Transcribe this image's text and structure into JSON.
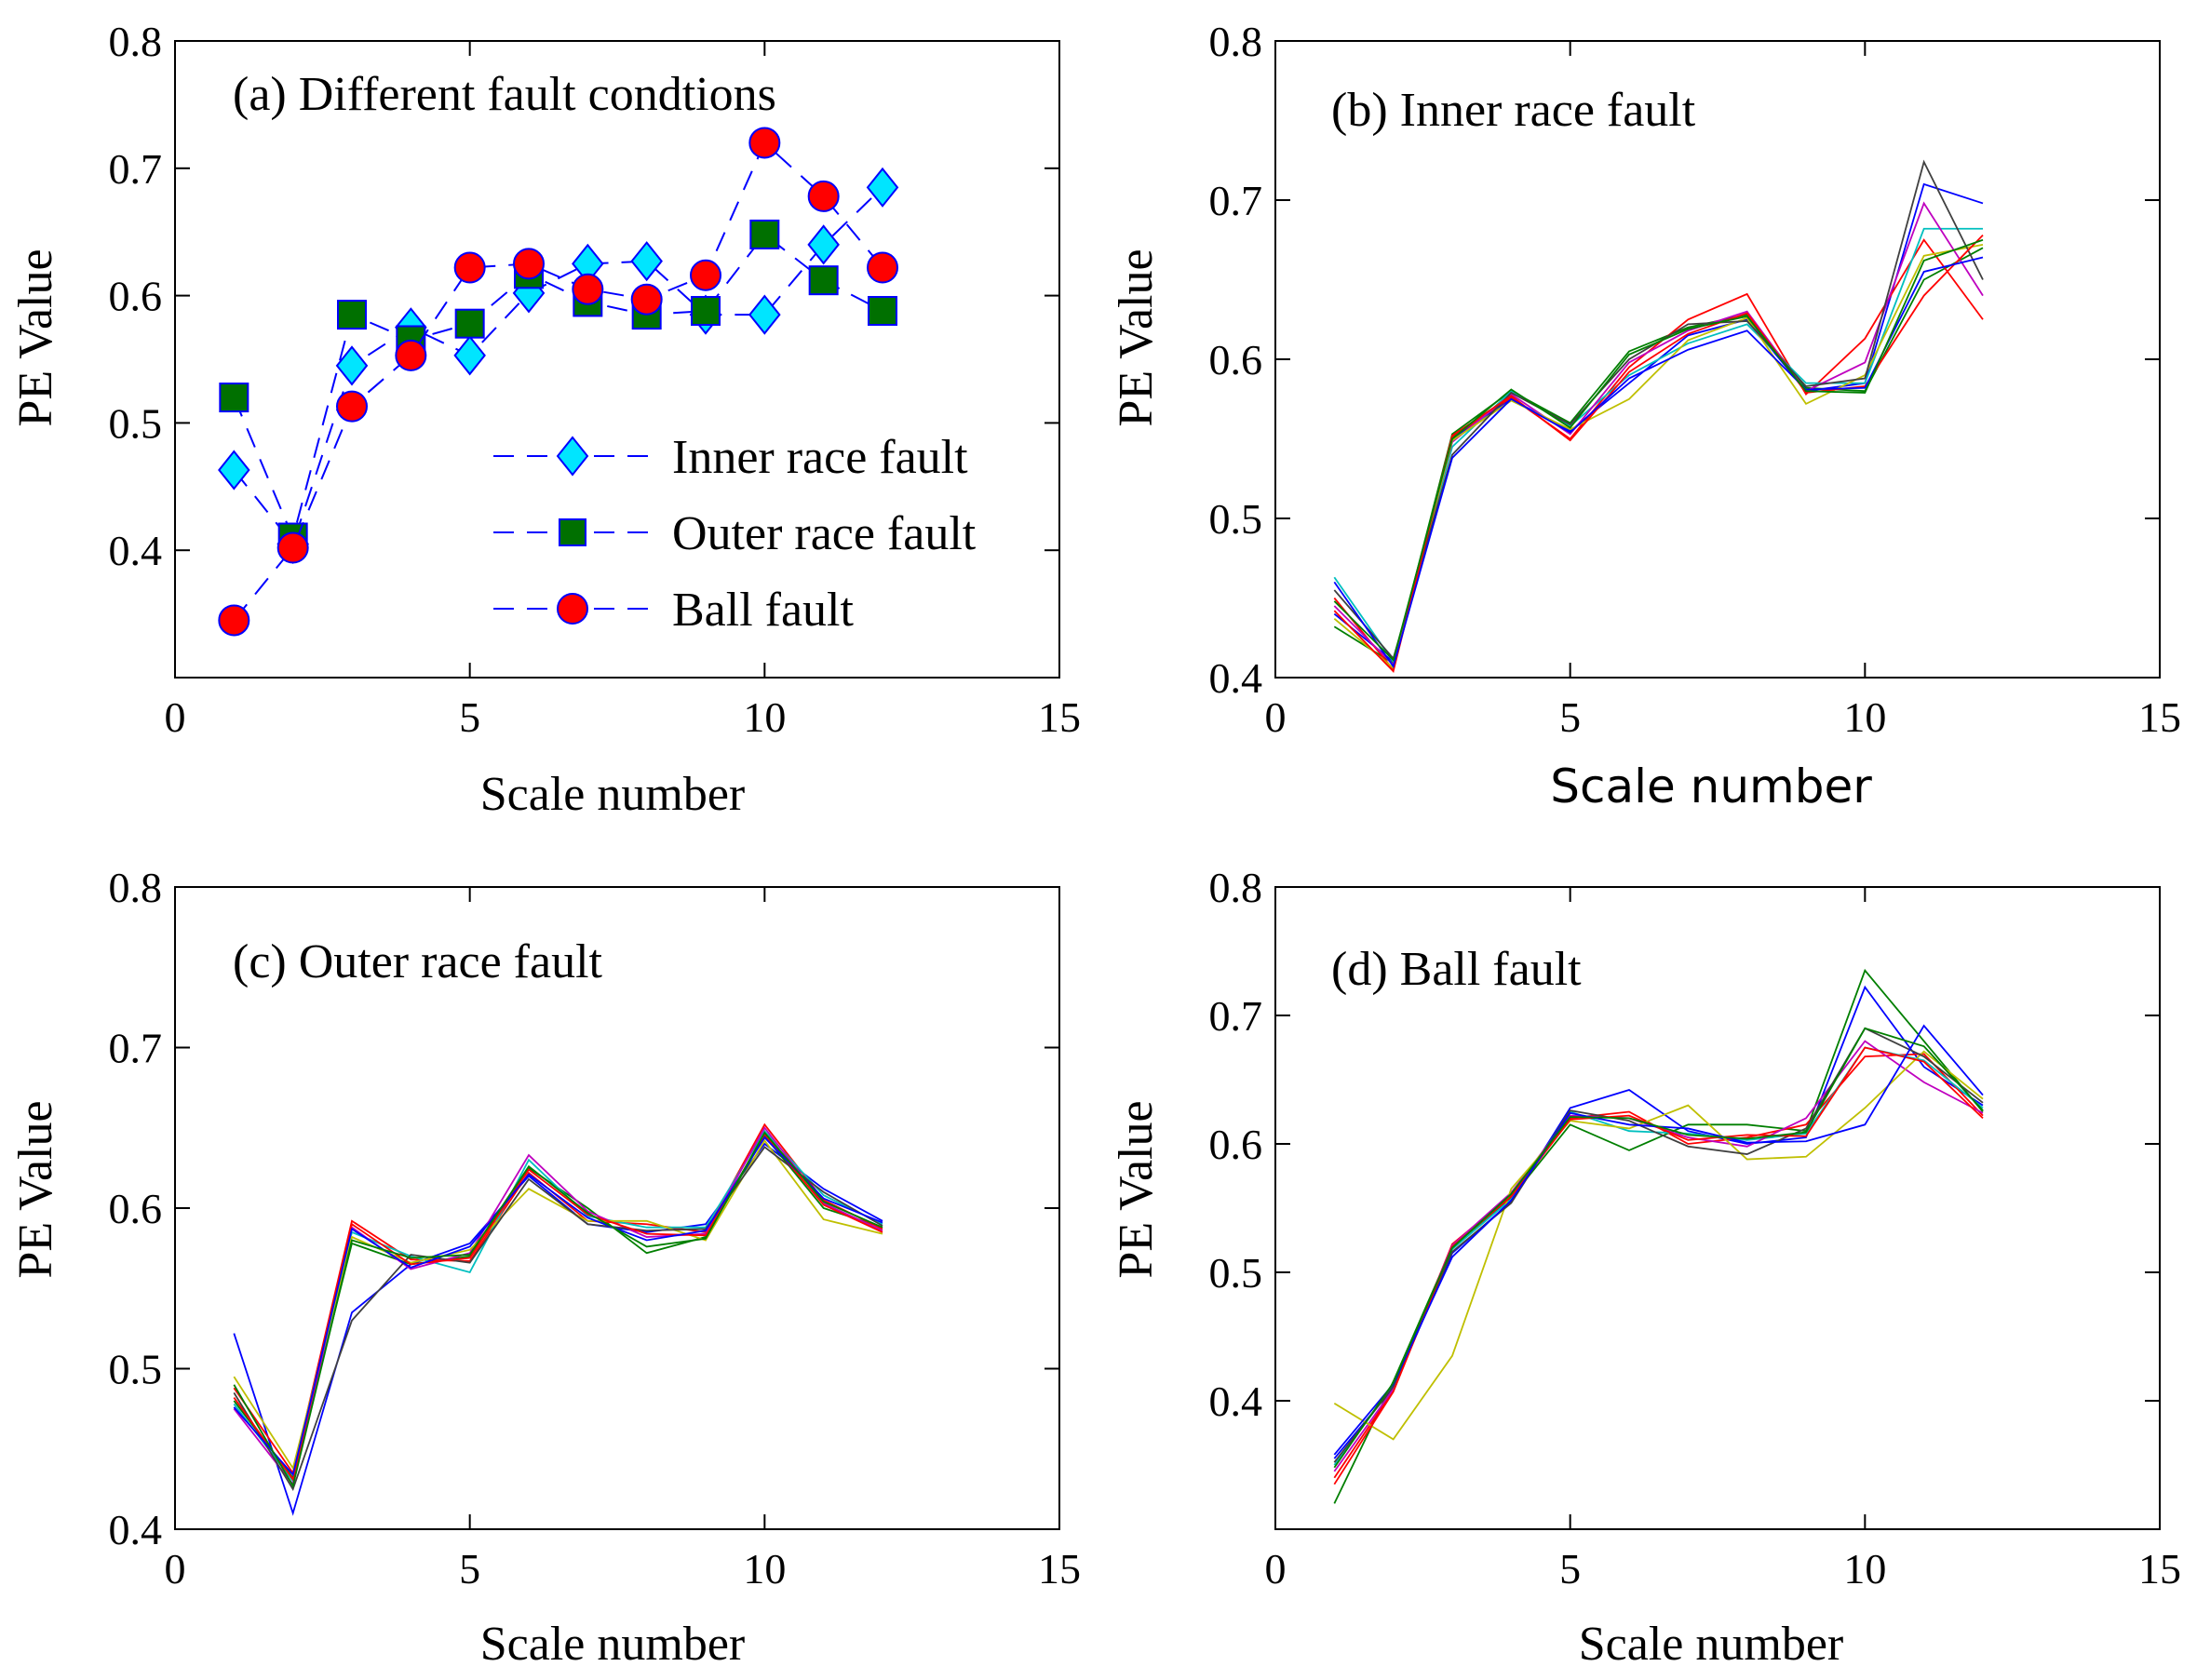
{
  "chart_data": [
    {
      "id": "a",
      "type": "line",
      "title": "(a) Different fault condtions",
      "xlabel": "Scale number",
      "ylabel": "PE Value",
      "xlim": [
        0,
        15
      ],
      "ylim": [
        0.3,
        0.8
      ],
      "xticks": [
        "0",
        "5",
        "10",
        "15"
      ],
      "yticks": [
        "0.4",
        "0.5",
        "0.6",
        "0.7",
        "0.8"
      ],
      "x": [
        1,
        2,
        3,
        4,
        5,
        6,
        7,
        8,
        9,
        10,
        11,
        12
      ],
      "legend": "center-right",
      "series": [
        {
          "name": "Inner race fault",
          "marker": "diamond",
          "color": "#00e5ff",
          "values": [
            0.463,
            0.405,
            0.545,
            0.575,
            0.553,
            0.602,
            0.625,
            0.627,
            0.585,
            0.585,
            0.64,
            0.685
          ]
        },
        {
          "name": "Outer race fault",
          "marker": "square",
          "color": "#007000",
          "values": [
            0.52,
            0.41,
            0.585,
            0.565,
            0.578,
            0.617,
            0.595,
            0.585,
            0.588,
            0.648,
            0.612,
            0.588
          ]
        },
        {
          "name": "Ball fault",
          "marker": "circle",
          "color": "#ff0000",
          "values": [
            0.345,
            0.402,
            0.513,
            0.553,
            0.622,
            0.625,
            0.605,
            0.597,
            0.616,
            0.72,
            0.678,
            0.622
          ]
        }
      ]
    },
    {
      "id": "b",
      "type": "line",
      "title": "(b) Inner race fault",
      "xlabel": "Scale number",
      "ylabel": "PE Value",
      "xlim": [
        0,
        15
      ],
      "ylim": [
        0.4,
        0.8
      ],
      "xticks": [
        "0",
        "5",
        "10",
        "15"
      ],
      "yticks": [
        "0.4",
        "0.5",
        "0.6",
        "0.7",
        "0.8"
      ],
      "x": [
        1,
        2,
        3,
        4,
        5,
        6,
        7,
        8,
        9,
        10,
        11,
        12
      ],
      "series": [
        {
          "color": "#0000ff",
          "values": [
            0.44,
            0.41,
            0.55,
            0.575,
            0.555,
            0.585,
            0.615,
            0.625,
            0.58,
            0.585,
            0.71,
            0.698
          ]
        },
        {
          "color": "#007f00",
          "values": [
            0.432,
            0.409,
            0.553,
            0.58,
            0.56,
            0.605,
            0.62,
            0.628,
            0.582,
            0.58,
            0.65,
            0.67
          ]
        },
        {
          "color": "#ff0000",
          "values": [
            0.45,
            0.405,
            0.551,
            0.576,
            0.55,
            0.595,
            0.625,
            0.641,
            0.578,
            0.613,
            0.675,
            0.625
          ]
        },
        {
          "color": "#00bfbf",
          "values": [
            0.463,
            0.41,
            0.545,
            0.58,
            0.558,
            0.59,
            0.61,
            0.622,
            0.585,
            0.585,
            0.682,
            0.682
          ]
        },
        {
          "color": "#bf00bf",
          "values": [
            0.445,
            0.408,
            0.548,
            0.578,
            0.553,
            0.598,
            0.618,
            0.63,
            0.58,
            0.598,
            0.698,
            0.64
          ]
        },
        {
          "color": "#bfbf00",
          "values": [
            0.437,
            0.406,
            0.549,
            0.574,
            0.556,
            0.575,
            0.612,
            0.626,
            0.572,
            0.59,
            0.665,
            0.672
          ]
        },
        {
          "color": "#404040",
          "values": [
            0.455,
            0.412,
            0.54,
            0.579,
            0.559,
            0.6,
            0.622,
            0.624,
            0.583,
            0.588,
            0.724,
            0.65
          ]
        },
        {
          "color": "#ff0000",
          "values": [
            0.442,
            0.404,
            0.552,
            0.577,
            0.549,
            0.592,
            0.616,
            0.629,
            0.579,
            0.583,
            0.64,
            0.678
          ]
        },
        {
          "color": "#0000ff",
          "values": [
            0.46,
            0.407,
            0.538,
            0.575,
            0.554,
            0.588,
            0.606,
            0.618,
            0.581,
            0.582,
            0.655,
            0.664
          ]
        },
        {
          "color": "#007f00",
          "values": [
            0.448,
            0.411,
            0.55,
            0.581,
            0.557,
            0.603,
            0.619,
            0.627,
            0.58,
            0.579,
            0.662,
            0.675
          ]
        }
      ]
    },
    {
      "id": "c",
      "type": "line",
      "title": "(c) Outer race fault",
      "xlabel": "Scale number",
      "ylabel": "PE Value",
      "xlim": [
        0,
        15
      ],
      "ylim": [
        0.4,
        0.8
      ],
      "xticks": [
        "0",
        "5",
        "10",
        "15"
      ],
      "yticks": [
        "0.4",
        "0.5",
        "0.6",
        "0.7",
        "0.8"
      ],
      "x": [
        1,
        2,
        3,
        4,
        5,
        6,
        7,
        8,
        9,
        10,
        11,
        12
      ],
      "series": [
        {
          "color": "#0000ff",
          "values": [
            0.522,
            0.41,
            0.535,
            0.565,
            0.578,
            0.62,
            0.59,
            0.585,
            0.59,
            0.64,
            0.612,
            0.592
          ]
        },
        {
          "color": "#007f00",
          "values": [
            0.48,
            0.432,
            0.578,
            0.565,
            0.57,
            0.625,
            0.6,
            0.572,
            0.582,
            0.645,
            0.6,
            0.588
          ]
        },
        {
          "color": "#ff0000",
          "values": [
            0.488,
            0.435,
            0.592,
            0.568,
            0.567,
            0.622,
            0.592,
            0.59,
            0.585,
            0.652,
            0.605,
            0.587
          ]
        },
        {
          "color": "#00bfbf",
          "values": [
            0.478,
            0.43,
            0.585,
            0.57,
            0.56,
            0.63,
            0.595,
            0.588,
            0.588,
            0.648,
            0.608,
            0.59
          ]
        },
        {
          "color": "#bf00bf",
          "values": [
            0.475,
            0.428,
            0.588,
            0.562,
            0.572,
            0.633,
            0.598,
            0.582,
            0.584,
            0.65,
            0.603,
            0.586
          ]
        },
        {
          "color": "#bfbf00",
          "values": [
            0.495,
            0.438,
            0.582,
            0.566,
            0.574,
            0.612,
            0.592,
            0.592,
            0.58,
            0.642,
            0.593,
            0.584
          ]
        },
        {
          "color": "#404040",
          "values": [
            0.485,
            0.425,
            0.53,
            0.571,
            0.566,
            0.618,
            0.59,
            0.586,
            0.587,
            0.638,
            0.61,
            0.589
          ]
        },
        {
          "color": "#ff0000",
          "values": [
            0.482,
            0.431,
            0.59,
            0.565,
            0.569,
            0.624,
            0.596,
            0.584,
            0.583,
            0.646,
            0.602,
            0.585
          ]
        },
        {
          "color": "#0000ff",
          "values": [
            0.476,
            0.434,
            0.587,
            0.563,
            0.576,
            0.621,
            0.594,
            0.58,
            0.586,
            0.644,
            0.606,
            0.591
          ]
        },
        {
          "color": "#007f00",
          "values": [
            0.49,
            0.427,
            0.58,
            0.569,
            0.571,
            0.626,
            0.597,
            0.576,
            0.581,
            0.647,
            0.604,
            0.588
          ]
        }
      ]
    },
    {
      "id": "d",
      "type": "line",
      "title": "(d) Ball fault",
      "xlabel": "Scale number",
      "ylabel": "PE Value",
      "xlim": [
        0,
        15
      ],
      "ylim": [
        0.3,
        0.8
      ],
      "xticks": [
        "0",
        "5",
        "10",
        "15"
      ],
      "yticks": [
        "0.4",
        "0.5",
        "0.6",
        "0.7",
        "0.8"
      ],
      "x": [
        1,
        2,
        3,
        4,
        5,
        6,
        7,
        8,
        9,
        10,
        11,
        12
      ],
      "series": [
        {
          "color": "#0000ff",
          "values": [
            0.355,
            0.41,
            0.515,
            0.555,
            0.628,
            0.642,
            0.61,
            0.6,
            0.605,
            0.722,
            0.66,
            0.63
          ]
        },
        {
          "color": "#007f00",
          "values": [
            0.32,
            0.415,
            0.52,
            0.558,
            0.615,
            0.595,
            0.615,
            0.615,
            0.61,
            0.735,
            0.68,
            0.625
          ]
        },
        {
          "color": "#ff0000",
          "values": [
            0.34,
            0.408,
            0.522,
            0.56,
            0.62,
            0.625,
            0.6,
            0.605,
            0.615,
            0.668,
            0.67,
            0.622
          ]
        },
        {
          "color": "#00bfbf",
          "values": [
            0.35,
            0.412,
            0.518,
            0.557,
            0.625,
            0.61,
            0.608,
            0.603,
            0.608,
            0.675,
            0.665,
            0.628
          ]
        },
        {
          "color": "#bf00bf",
          "values": [
            0.345,
            0.409,
            0.521,
            0.562,
            0.622,
            0.62,
            0.605,
            0.598,
            0.62,
            0.68,
            0.648,
            0.624
          ]
        },
        {
          "color": "#bfbf00",
          "values": [
            0.398,
            0.37,
            0.435,
            0.565,
            0.618,
            0.612,
            0.63,
            0.588,
            0.59,
            0.628,
            0.672,
            0.635
          ]
        },
        {
          "color": "#404040",
          "values": [
            0.352,
            0.411,
            0.516,
            0.554,
            0.626,
            0.618,
            0.598,
            0.592,
            0.612,
            0.69,
            0.668,
            0.632
          ]
        },
        {
          "color": "#ff0000",
          "values": [
            0.335,
            0.407,
            0.52,
            0.559,
            0.619,
            0.622,
            0.603,
            0.607,
            0.606,
            0.675,
            0.664,
            0.62
          ]
        },
        {
          "color": "#0000ff",
          "values": [
            0.358,
            0.413,
            0.512,
            0.556,
            0.624,
            0.615,
            0.612,
            0.601,
            0.602,
            0.615,
            0.692,
            0.638
          ]
        },
        {
          "color": "#007f00",
          "values": [
            0.348,
            0.414,
            0.519,
            0.561,
            0.621,
            0.62,
            0.607,
            0.604,
            0.609,
            0.69,
            0.676,
            0.626
          ]
        }
      ]
    }
  ]
}
